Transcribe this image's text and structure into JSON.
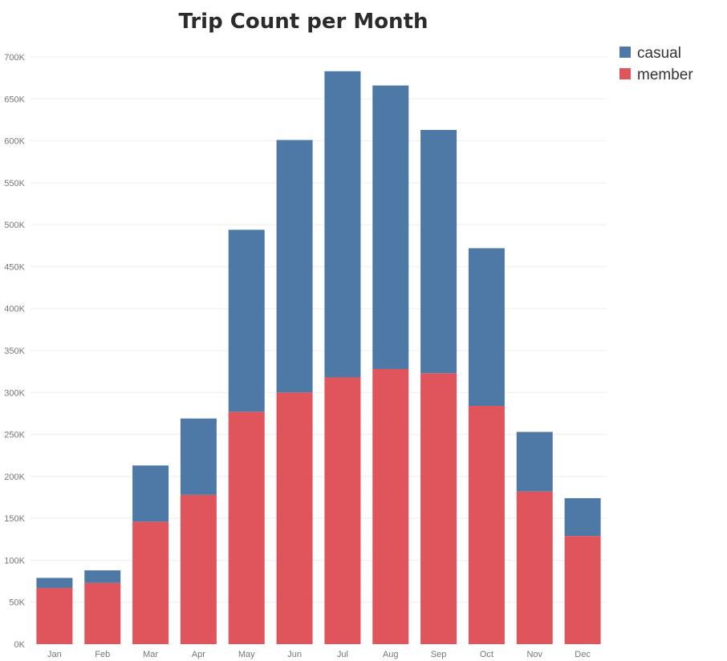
{
  "chart_data": {
    "type": "bar",
    "stacked": true,
    "title": "Trip Count per Month",
    "xlabel": "",
    "ylabel": "",
    "categories": [
      "Jan",
      "Feb",
      "Mar",
      "Apr",
      "May",
      "Jun",
      "Jul",
      "Aug",
      "Sep",
      "Oct",
      "Nov",
      "Dec"
    ],
    "series": [
      {
        "name": "member",
        "color": "#E0555B",
        "values": [
          67000,
          73000,
          146000,
          178000,
          277000,
          300000,
          318000,
          328000,
          323000,
          284000,
          182000,
          129000
        ]
      },
      {
        "name": "casual",
        "color": "#4E79A7",
        "values": [
          12000,
          15000,
          67000,
          91000,
          217000,
          301000,
          365000,
          338000,
          290000,
          188000,
          71000,
          45000
        ]
      }
    ],
    "legend": [
      {
        "name": "casual",
        "color": "#4E79A7"
      },
      {
        "name": "member",
        "color": "#E0555B"
      }
    ],
    "legend_position": "top-right",
    "ylim": [
      0,
      700000
    ],
    "yticks": [
      0,
      50000,
      100000,
      150000,
      200000,
      250000,
      300000,
      350000,
      400000,
      450000,
      500000,
      550000,
      600000,
      650000,
      700000
    ],
    "ytick_labels": [
      "0K",
      "50K",
      "100K",
      "150K",
      "200K",
      "250K",
      "300K",
      "350K",
      "400K",
      "450K",
      "500K",
      "550K",
      "600K",
      "650K",
      "700K"
    ],
    "grid": true
  }
}
